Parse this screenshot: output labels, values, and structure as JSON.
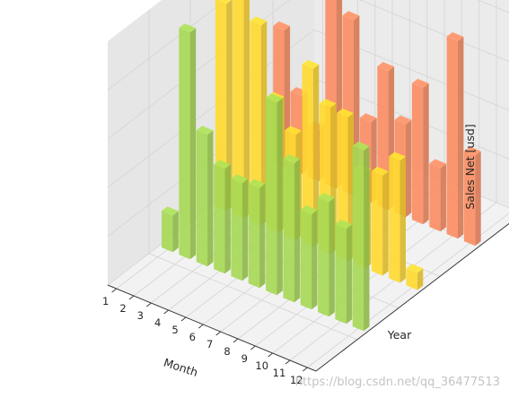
{
  "chart_data": {
    "type": "bar",
    "projection": "3d",
    "categories": [
      "1",
      "2",
      "3",
      "4",
      "5",
      "6",
      "7",
      "8",
      "9",
      "10",
      "11",
      "12"
    ],
    "xlabel": "Month",
    "ylabel": "Year",
    "zlabel": "Sales Net [usd]",
    "zticks": [
      "0",
      "200",
      "400",
      "600",
      "800"
    ],
    "zlim": [
      0,
      1000
    ],
    "grid": true,
    "series": [
      {
        "color": "#a6d854",
        "values": [
          150,
          930,
          540,
          430,
          400,
          410,
          790,
          570,
          390,
          470,
          390,
          740
        ]
      },
      {
        "color": "#ffd92f",
        "values": [
          850,
          950,
          820,
          540,
          430,
          730,
          600,
          590,
          390,
          410,
          500,
          70
        ]
      },
      {
        "color": "#fc8d62",
        "values": [
          560,
          320,
          210,
          790,
          720,
          330,
          570,
          380,
          560,
          260,
          810,
          370
        ]
      }
    ]
  },
  "watermark": "https://blog.csdn.net/qq_36477513"
}
